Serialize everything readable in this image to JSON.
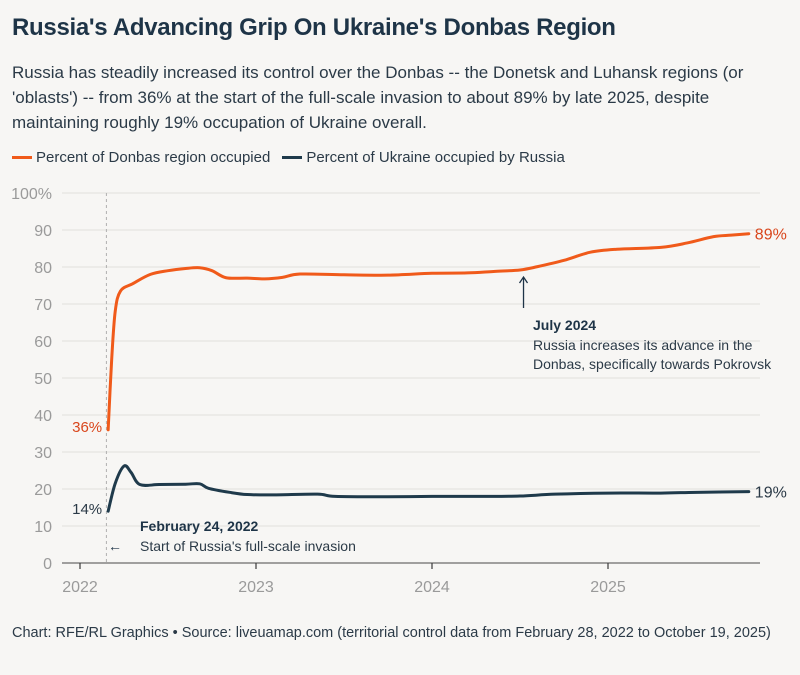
{
  "title": "Russia's Advancing Grip On Ukraine's Donbas Region",
  "subtitle": "Russia has steadily increased its control over the Donbas -- the Donetsk and Luhansk regions (or 'oblasts') -- from 36% at the start of the full-scale invasion to about 89% by late 2025, despite maintaining roughly 19% occupation of Ukraine overall.",
  "source": "Chart: RFE/RL Graphics • Source: liveuamap.com (territorial control data from February 28, 2022 to October 19, 2025)",
  "colors": {
    "donbas": "#f05a1a",
    "ukraine": "#1f3a4b",
    "grid": "#e2e0dd",
    "tick": "#9a9a9a",
    "donbas_label": "#d9461c"
  },
  "chart_data": {
    "type": "line",
    "title": "Russia's Advancing Grip On Ukraine's Donbas Region",
    "xlabel": "",
    "ylabel": "",
    "xlim": [
      2021.98,
      2025.88
    ],
    "ylim": [
      0,
      100
    ],
    "y_ticks": [
      0,
      10,
      20,
      30,
      40,
      50,
      60,
      70,
      80,
      90,
      100
    ],
    "y_tick_labels": [
      "0",
      "10",
      "20",
      "30",
      "40",
      "50",
      "60",
      "70",
      "80",
      "90",
      "100%"
    ],
    "x_ticks": [
      2022,
      2023,
      2024,
      2025
    ],
    "x_tick_labels": [
      "2022",
      "2023",
      "2024",
      "2025"
    ],
    "grid": true,
    "legend_position": "top-left",
    "series": [
      {
        "name": "Percent of Donbas region occupied",
        "color": "#f05a1a",
        "x": [
          2022.16,
          2022.18,
          2022.2,
          2022.23,
          2022.3,
          2022.4,
          2022.5,
          2022.6,
          2022.68,
          2022.75,
          2022.83,
          2022.95,
          2023.05,
          2023.15,
          2023.25,
          2023.5,
          2023.75,
          2024.0,
          2024.2,
          2024.35,
          2024.5,
          2024.6,
          2024.75,
          2024.9,
          2025.05,
          2025.3,
          2025.45,
          2025.6,
          2025.7,
          2025.8
        ],
        "values": [
          36,
          55,
          68,
          73.5,
          75.5,
          78,
          79,
          79.6,
          79.8,
          79,
          77.1,
          77,
          76.8,
          77.2,
          78.1,
          77.9,
          77.8,
          78.3,
          78.4,
          78.8,
          79.2,
          80.1,
          81.8,
          84,
          84.8,
          85.3,
          86.5,
          88.2,
          88.6,
          89
        ]
      },
      {
        "name": "Percent of Ukraine occupied by Russia",
        "color": "#1f3a4b",
        "x": [
          2022.16,
          2022.2,
          2022.25,
          2022.29,
          2022.34,
          2022.45,
          2022.6,
          2022.68,
          2022.73,
          2022.85,
          2022.95,
          2023.1,
          2023.35,
          2023.45,
          2023.75,
          2024.0,
          2024.3,
          2024.5,
          2024.7,
          2025.0,
          2025.3,
          2025.5,
          2025.8
        ],
        "values": [
          14,
          21.5,
          26.2,
          24.5,
          21.2,
          21.2,
          21.3,
          21.4,
          20.2,
          19.1,
          18.5,
          18.4,
          18.6,
          18,
          17.9,
          18,
          18,
          18.1,
          18.6,
          18.9,
          18.9,
          19.1,
          19.3
        ]
      }
    ],
    "end_labels": [
      {
        "series": "Percent of Donbas region occupied",
        "start": "36%",
        "end": "89%"
      },
      {
        "series": "Percent of Ukraine occupied by Russia",
        "start": "14%",
        "end": "19%"
      }
    ],
    "annotations": [
      {
        "x": 2022.15,
        "title": "February 24, 2022",
        "text": "Start of Russia's full-scale invasion",
        "arrow": "←",
        "style": "dashed vertical line"
      },
      {
        "x": 2024.52,
        "title": "July 2024",
        "text_lines": [
          "Russia increases its advance in the",
          "Donbas, specifically towards Pokrovsk"
        ],
        "arrow": "↑"
      }
    ]
  }
}
